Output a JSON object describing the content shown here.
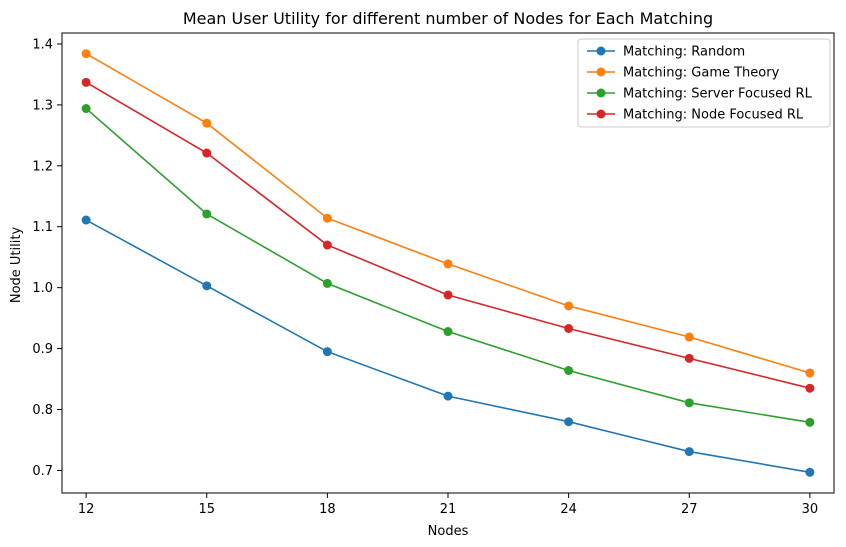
{
  "chart_data": {
    "type": "line",
    "title": "Mean User Utility for different number of Nodes for Each Matching",
    "xlabel": "Nodes",
    "ylabel": "Node Utility",
    "x": [
      12,
      15,
      18,
      21,
      24,
      27,
      30
    ],
    "x_ticks": [
      "12",
      "15",
      "18",
      "21",
      "24",
      "27",
      "30"
    ],
    "y_ticks": [
      "0.7",
      "0.8",
      "0.9",
      "1.0",
      "1.1",
      "1.2",
      "1.3",
      "1.4"
    ],
    "xlim": [
      11.4,
      30.6
    ],
    "ylim": [
      0.663,
      1.418
    ],
    "grid": false,
    "legend_position": "top-right",
    "series": [
      {
        "name": "Matching: Random",
        "color": "#1f77b4",
        "values": [
          1.111,
          1.003,
          0.895,
          0.822,
          0.78,
          0.731,
          0.697
        ]
      },
      {
        "name": "Matching: Game Theory",
        "color": "#ff7f0e",
        "values": [
          1.384,
          1.27,
          1.114,
          1.039,
          0.97,
          0.919,
          0.86
        ]
      },
      {
        "name": "Matching: Server Focused RL",
        "color": "#2ca02c",
        "values": [
          1.294,
          1.121,
          1.007,
          0.928,
          0.864,
          0.811,
          0.779
        ]
      },
      {
        "name": "Matching: Node Focused RL",
        "color": "#d62728",
        "values": [
          1.337,
          1.221,
          1.07,
          0.988,
          0.933,
          0.884,
          0.835
        ]
      }
    ]
  }
}
